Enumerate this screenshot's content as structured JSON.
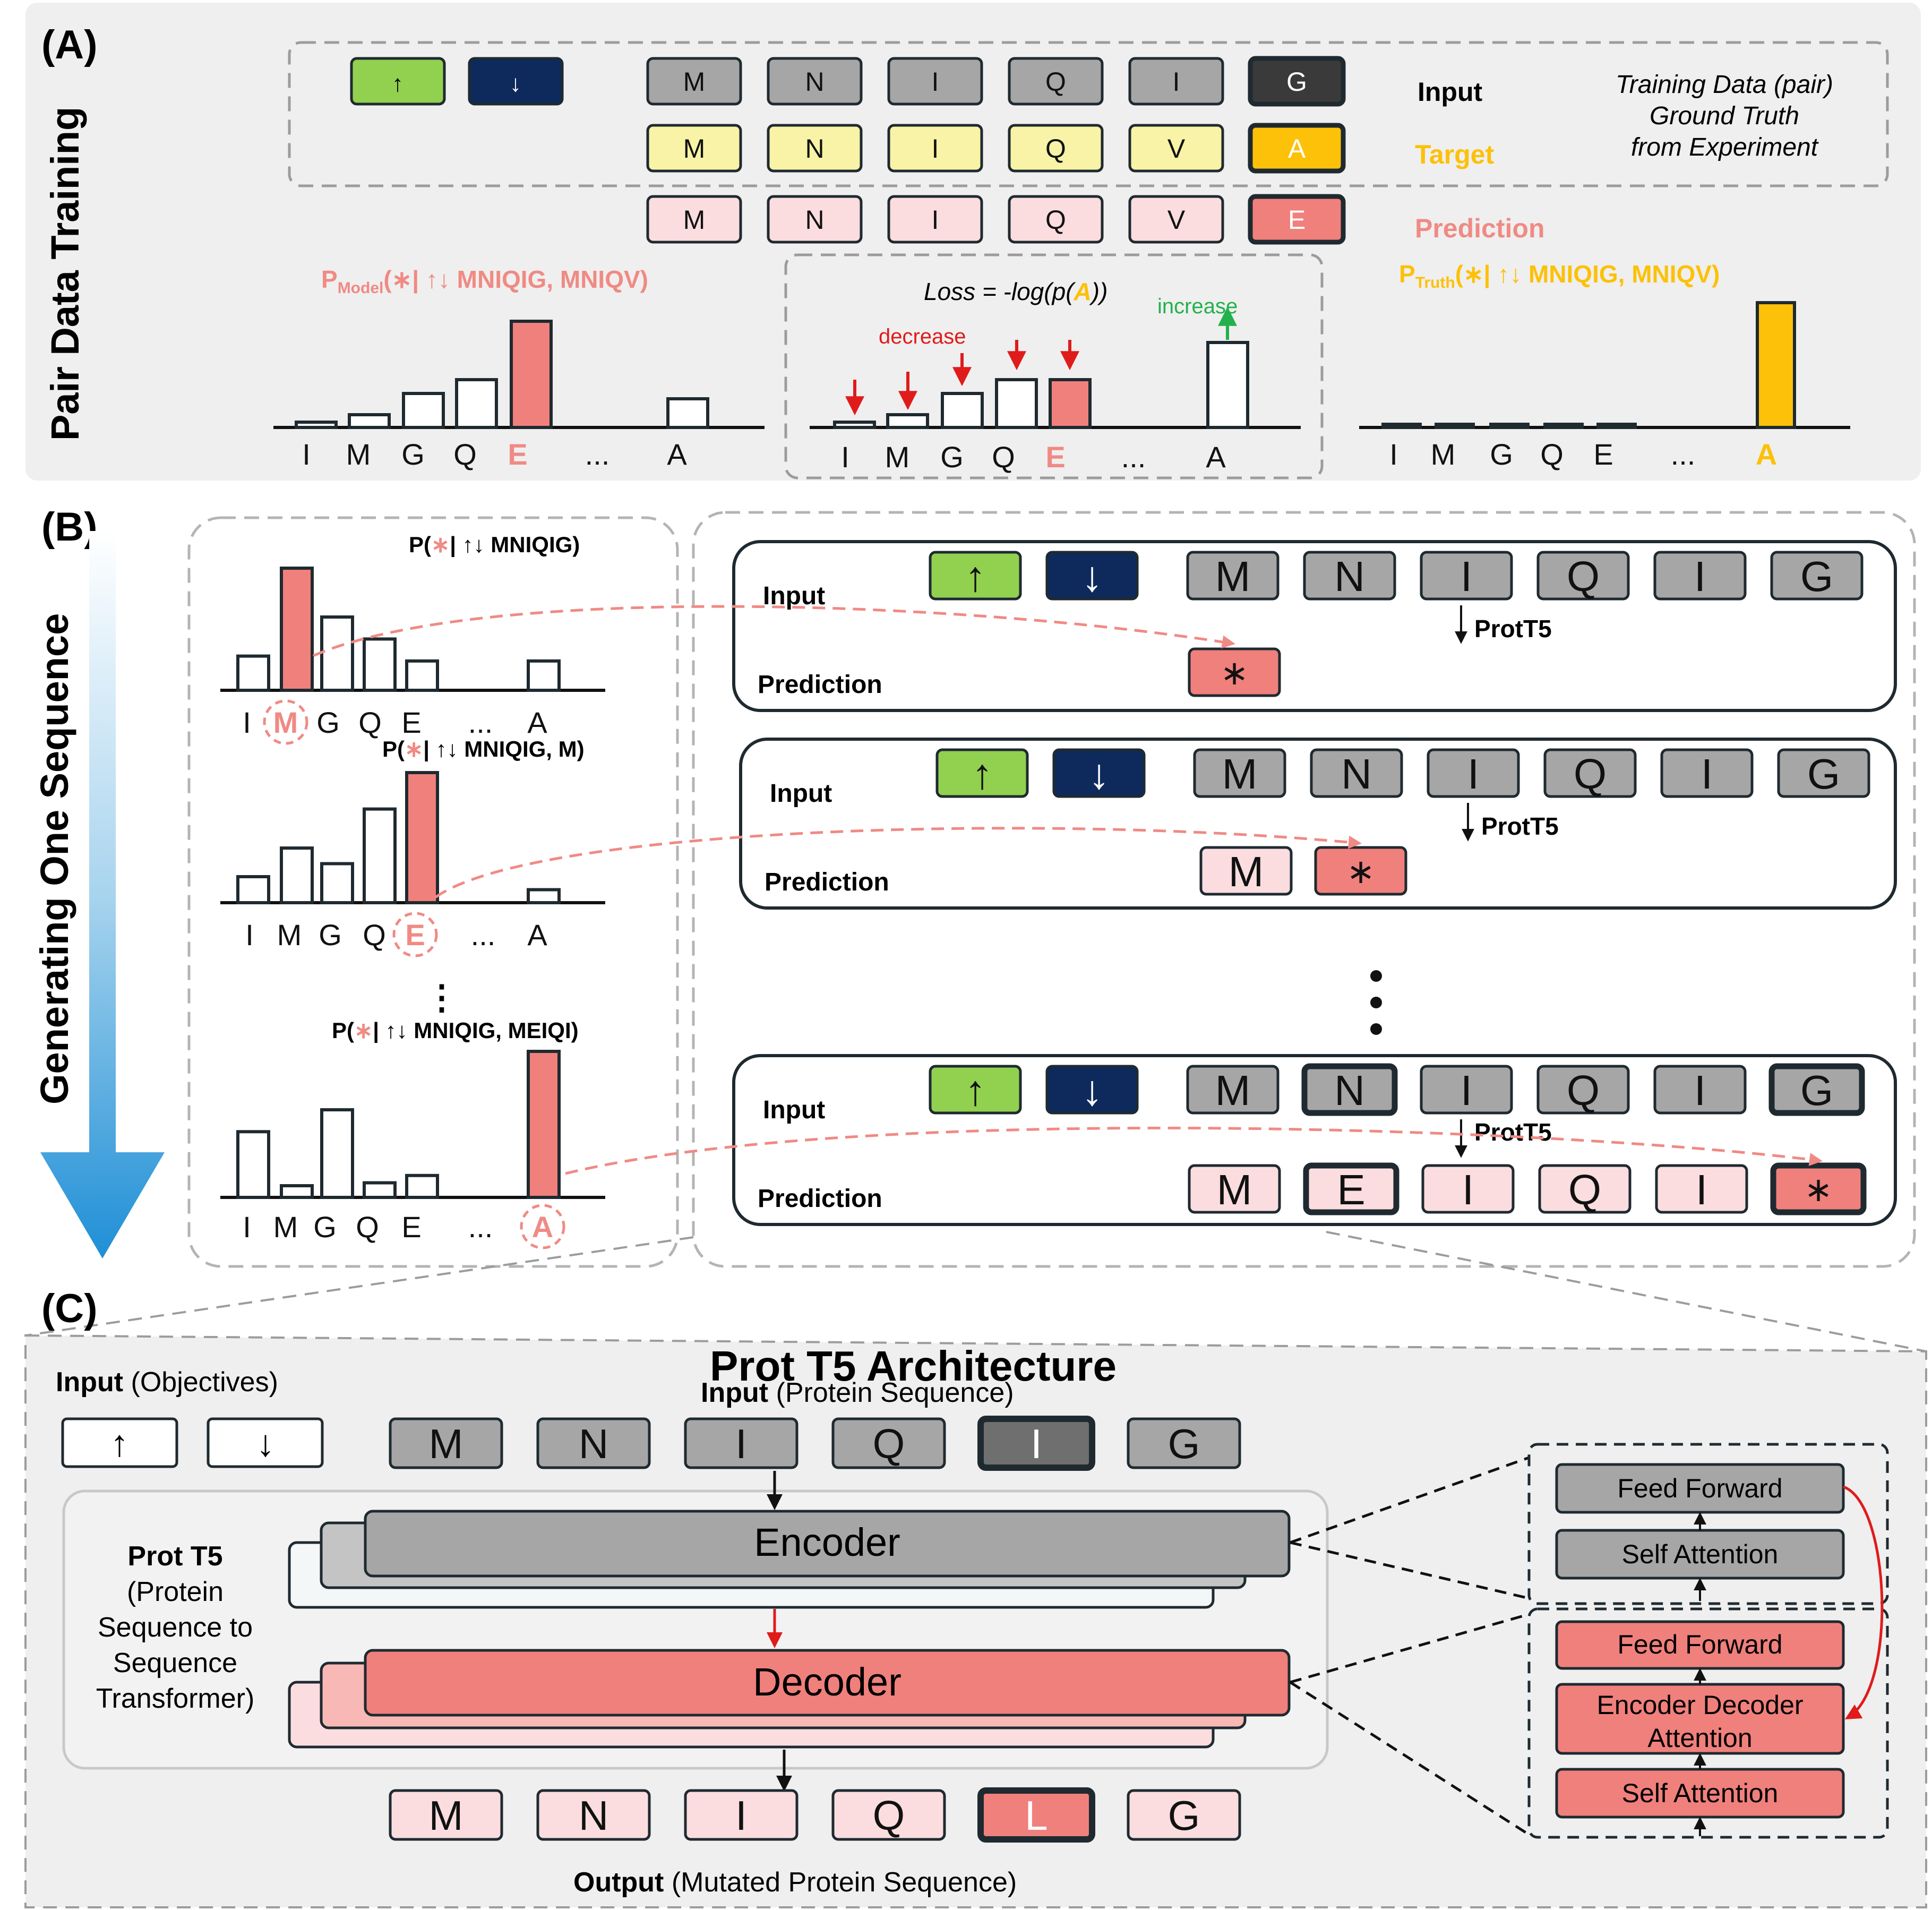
{
  "panelA": {
    "label": "(A)",
    "side_title": "Pair Data Training",
    "obj_up": "↑",
    "obj_down": "↓",
    "input_tokens": [
      "M",
      "N",
      "I",
      "Q",
      "I",
      "G"
    ],
    "target_tokens": [
      "M",
      "N",
      "I",
      "Q",
      "V",
      "A"
    ],
    "pred_tokens": [
      "M",
      "N",
      "I",
      "Q",
      "V",
      "E"
    ],
    "row_input": "Input",
    "row_target": "Target",
    "row_prediction": "Prediction",
    "training_note": [
      "Training Data (pair)",
      "Ground Truth",
      "from Experiment"
    ],
    "pmodel_p": "P",
    "pmodel_sub": "Model",
    "pmodel_tail": "(∗| ↑↓ MNIQIG, MNIQV)",
    "ptruth_p": "P",
    "ptruth_sub": "Truth",
    "ptruth_tail": "(∗| ↑↓ MNIQIG, MNIQV)",
    "loss_prefix": "Loss = -log(p(",
    "loss_letter": "A",
    "loss_suffix": "))",
    "decrease": "decrease",
    "increase": "increase",
    "axis_labels": [
      "I",
      "M",
      "G",
      "Q",
      "E",
      "...",
      "A"
    ],
    "model_probs": [
      0.05,
      0.12,
      0.32,
      0.45,
      1.0,
      0.27
    ],
    "loss_probs": [
      0.05,
      0.12,
      0.32,
      0.45,
      0.45,
      0.8
    ],
    "truth_probs": [
      0.02,
      0.02,
      0.02,
      0.02,
      0.02,
      1.0
    ]
  },
  "panelB": {
    "label": "(B)",
    "side_title": "Generating One Sequence",
    "obj_up": "↑",
    "obj_down": "↓",
    "input_tokens": [
      "M",
      "N",
      "I",
      "Q",
      "I",
      "G"
    ],
    "step_input": "Input",
    "step_prediction": "Prediction",
    "protT5": "ProtT5",
    "star": "∗",
    "vdots": "⋮",
    "steps": [
      {
        "title_pre": "P(",
        "title_star": "∗",
        "title_post": "| ↑↓ MNIQIG)",
        "pred_tokens": [],
        "selected": "M",
        "probs": [
          0.28,
          1.0,
          0.6,
          0.42,
          0.24,
          0.24
        ]
      },
      {
        "title_pre": "P(",
        "title_star": "∗",
        "title_post": "| ↑↓ MNIQIG, M)",
        "pred_tokens": [
          "M"
        ],
        "selected": "E",
        "probs": [
          0.2,
          0.42,
          0.3,
          0.72,
          1.0,
          0.1
        ]
      },
      {
        "title_pre": "P(",
        "title_star": "∗",
        "title_post": "| ↑↓ MNIQIG, MEIQI)",
        "pred_tokens": [
          "M",
          "E",
          "I",
          "Q",
          "I"
        ],
        "selected": "A",
        "probs": [
          0.45,
          0.08,
          0.6,
          0.1,
          0.15,
          1.0
        ]
      }
    ],
    "axis_labels": [
      "I",
      "M",
      "G",
      "Q",
      "E",
      "...",
      "A"
    ]
  },
  "panelC": {
    "label": "(C)",
    "title": "Prot T5 Architecture",
    "input_obj_bold": "Input",
    "input_obj_rest": " (Objectives)",
    "input_seq_bold": "Input",
    "input_seq_rest": " (Protein Sequence)",
    "obj_up": "↑",
    "obj_down": "↓",
    "input_tokens": [
      "M",
      "N",
      "I",
      "Q",
      "I",
      "G"
    ],
    "output_tokens": [
      "M",
      "N",
      "I",
      "Q",
      "L",
      "G"
    ],
    "encoder": "Encoder",
    "decoder": "Decoder",
    "prot_t5_bold": "Prot T5",
    "prot_t5_desc": [
      "(Protein",
      "Sequence to",
      "Sequence",
      "Transformer)"
    ],
    "enc_blocks": [
      "Feed Forward",
      "Self Attention"
    ],
    "dec_blocks": [
      "Feed Forward",
      "Encoder Decoder",
      "Attention",
      "Self Attention"
    ],
    "output_bold": "Output",
    "output_rest": " (Mutated Protein Sequence)"
  },
  "colors": {
    "grey_token": "#a6a6a6",
    "dark_token": "#3a3a3a",
    "yellow_token": "#f8f3a6",
    "gold": "#fcc108",
    "pink_token": "#fbdde0",
    "salmon": "#f0807c",
    "green": "#92d050",
    "navy": "#0e2a5c",
    "target_text": "#fcc108",
    "prediction_text": "#f08a84",
    "panel_bg": "#efefef"
  }
}
